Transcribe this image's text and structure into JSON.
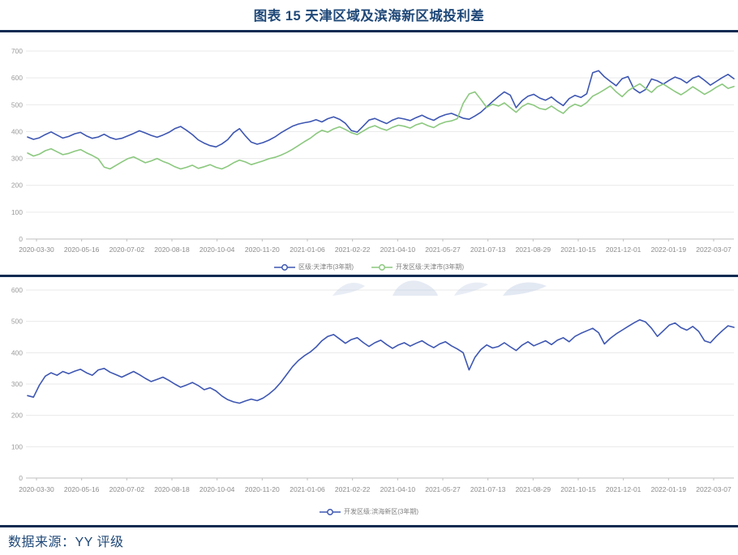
{
  "header": {
    "title": "图表 15  天津区域及滨海新区城投利差"
  },
  "footer": {
    "source": "数据来源：YY 评级"
  },
  "colors": {
    "title_navy": "#1f4878",
    "rule_navy": "#0f2b52",
    "blue_series": "#3d56b2",
    "green_series": "#8bc87e",
    "grid_line": "#e9e9e9",
    "axis_line": "#bfbfbf",
    "tick_label": "#8c8c8c",
    "legend_text": "#7f7f7f",
    "watermark_blue": "#c3cfe4"
  },
  "chart_data": [
    {
      "type": "line",
      "title": "",
      "xlabel": "",
      "ylabel": "",
      "ylim": [
        0,
        700
      ],
      "y_ticks": [
        0,
        100,
        200,
        300,
        400,
        500,
        600,
        700
      ],
      "grid": "horizontal",
      "legend_position": "bottom-center",
      "x_labels": [
        "2020-03-30",
        "2020-05-16",
        "2020-07-02",
        "2020-08-18",
        "2020-10-04",
        "2020-11-20",
        "2021-01-06",
        "2021-02-22",
        "2021-04-10",
        "2021-05-27",
        "2021-07-13",
        "2021-08-29",
        "2021-10-15",
        "2021-12-01",
        "2022-01-19",
        "2022-03-07"
      ],
      "series": [
        {
          "label": "区级:天津市(3年期)",
          "color": "#3d56b2",
          "values": [
            380,
            371,
            377,
            389,
            399,
            387,
            376,
            382,
            392,
            397,
            384,
            375,
            380,
            390,
            378,
            371,
            375,
            384,
            393,
            403,
            395,
            386,
            379,
            387,
            397,
            411,
            419,
            405,
            389,
            369,
            357,
            348,
            343,
            354,
            370,
            396,
            411,
            384,
            361,
            353,
            359,
            368,
            380,
            395,
            408,
            420,
            428,
            433,
            437,
            444,
            436,
            448,
            455,
            446,
            431,
            404,
            398,
            420,
            443,
            449,
            439,
            430,
            443,
            451,
            447,
            441,
            452,
            461,
            450,
            442,
            455,
            463,
            468,
            459,
            450,
            446,
            458,
            472,
            492,
            512,
            531,
            548,
            536,
            489,
            515,
            532,
            539,
            525,
            517,
            529,
            511,
            497,
            523,
            535,
            527,
            541,
            619,
            627,
            604,
            587,
            571,
            597,
            605,
            559,
            544,
            557,
            596,
            589,
            577,
            591,
            603,
            595,
            581,
            599,
            607,
            591,
            573,
            587,
            601,
            613,
            597
          ]
        },
        {
          "label": "开发区级:天津市(3年期)",
          "color": "#8bc87e",
          "values": [
            320,
            309,
            316,
            329,
            336,
            325,
            314,
            319,
            327,
            333,
            321,
            311,
            299,
            268,
            261,
            274,
            287,
            299,
            306,
            295,
            284,
            291,
            300,
            289,
            281,
            269,
            261,
            267,
            275,
            263,
            269,
            277,
            267,
            261,
            271,
            284,
            294,
            287,
            277,
            284,
            291,
            299,
            304,
            312,
            322,
            334,
            348,
            362,
            375,
            392,
            405,
            398,
            410,
            418,
            408,
            396,
            389,
            402,
            415,
            422,
            412,
            405,
            416,
            424,
            420,
            413,
            425,
            432,
            422,
            415,
            428,
            436,
            440,
            448,
            505,
            540,
            548,
            520,
            490,
            502,
            495,
            507,
            489,
            472,
            493,
            505,
            498,
            486,
            482,
            495,
            480,
            468,
            490,
            502,
            494,
            508,
            532,
            543,
            556,
            570,
            548,
            530,
            552,
            566,
            578,
            561,
            546,
            567,
            577,
            563,
            549,
            537,
            551,
            567,
            553,
            539,
            551,
            565,
            577,
            561,
            568
          ]
        }
      ]
    },
    {
      "type": "line",
      "title": "",
      "xlabel": "",
      "ylabel": "",
      "ylim": [
        0,
        600
      ],
      "y_ticks": [
        0,
        100,
        200,
        300,
        400,
        500,
        600
      ],
      "grid": "horizontal",
      "legend_position": "bottom-center",
      "x_labels": [
        "2020-03-30",
        "2020-05-16",
        "2020-07-02",
        "2020-08-18",
        "2020-10-04",
        "2020-11-20",
        "2021-01-06",
        "2021-02-22",
        "2021-04-10",
        "2021-05-27",
        "2021-07-13",
        "2021-08-29",
        "2021-10-15",
        "2021-12-01",
        "2022-01-19",
        "2022-03-07"
      ],
      "series": [
        {
          "label": "开发区级:滨海新区(3年期)",
          "color": "#3d56b2",
          "values": [
            263,
            258,
            296,
            325,
            336,
            328,
            340,
            333,
            341,
            347,
            336,
            328,
            345,
            350,
            338,
            330,
            322,
            331,
            340,
            330,
            318,
            308,
            315,
            322,
            312,
            300,
            290,
            297,
            305,
            295,
            282,
            288,
            278,
            262,
            250,
            243,
            239,
            246,
            252,
            247,
            255,
            268,
            284,
            305,
            330,
            355,
            375,
            390,
            402,
            418,
            438,
            452,
            458,
            444,
            430,
            442,
            448,
            433,
            420,
            432,
            440,
            426,
            414,
            425,
            432,
            421,
            430,
            438,
            426,
            416,
            428,
            435,
            422,
            412,
            400,
            345,
            385,
            410,
            425,
            415,
            420,
            432,
            419,
            407,
            424,
            435,
            422,
            430,
            438,
            426,
            440,
            448,
            435,
            452,
            462,
            470,
            478,
            464,
            428,
            446,
            460,
            472,
            484,
            495,
            505,
            498,
            478,
            452,
            470,
            488,
            495,
            480,
            472,
            484,
            468,
            438,
            432,
            452,
            470,
            486,
            481
          ]
        }
      ]
    }
  ]
}
